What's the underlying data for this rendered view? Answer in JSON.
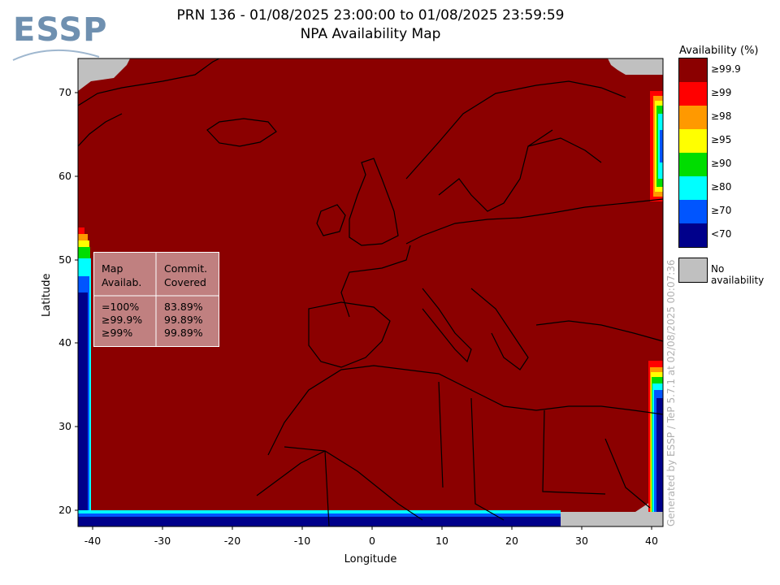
{
  "header": {
    "title_line1": "PRN 136 - 01/08/2025 23:00:00 to 01/08/2025 23:59:59",
    "title_line2": "NPA Availability Map",
    "logo_text": "ESSP"
  },
  "axes": {
    "xlabel": "Longitude",
    "ylabel": "Latitude",
    "x_ticks": [
      "-40",
      "-30",
      "-20",
      "-10",
      "0",
      "10",
      "20",
      "30",
      "40"
    ],
    "y_ticks": [
      "70",
      "60",
      "50",
      "40",
      "30",
      "20"
    ]
  },
  "stats_table": {
    "col1_header": [
      "Map",
      "Availab."
    ],
    "col2_header": [
      "Commit.",
      "Covered"
    ],
    "rows": [
      {
        "map": "=100%",
        "covered": "83.89%"
      },
      {
        "map": "≥99.9%",
        "covered": "99.89%"
      },
      {
        "map": "≥99%",
        "covered": "99.89%"
      }
    ]
  },
  "legend": {
    "title": "Availability (%)",
    "items": [
      {
        "label": "≥99.9",
        "color": "#8b0000"
      },
      {
        "label": "≥99",
        "color": "#ff0000"
      },
      {
        "label": "≥98",
        "color": "#ff9900"
      },
      {
        "label": "≥95",
        "color": "#ffff00"
      },
      {
        "label": "≥90",
        "color": "#00dd00"
      },
      {
        "label": "≥80",
        "color": "#00ffff"
      },
      {
        "label": "≥70",
        "color": "#0055ff"
      },
      {
        "label": "<70",
        "color": "#00008b"
      }
    ],
    "no_availability_label": "No availability",
    "no_availability_color": "#c0c0c0"
  },
  "credit": "Generated by ESSP / TeP 5.7.1 at 02/08/2025 00:07:36"
}
